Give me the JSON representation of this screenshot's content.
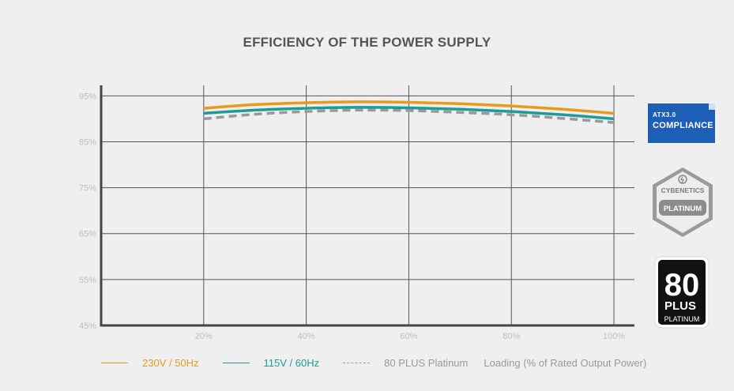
{
  "chart_data": {
    "type": "line",
    "title": "EFFICIENCY OF THE POWER SUPPLY",
    "xlabel": "Loading (% of Rated Output Power)",
    "ylabel": "",
    "x": [
      20,
      30,
      40,
      50,
      60,
      70,
      80,
      90,
      100
    ],
    "x_tick_labels": [
      "20%",
      "40%",
      "60%",
      "80%",
      "100%"
    ],
    "x_ticks": [
      20,
      40,
      60,
      80,
      100
    ],
    "xlim": [
      0,
      104
    ],
    "y_tick_labels": [
      "95%",
      "85%",
      "75%",
      "65%",
      "55%",
      "45%"
    ],
    "y_ticks": [
      95,
      85,
      75,
      65,
      55,
      45
    ],
    "ylim": [
      45,
      97.3
    ],
    "grid": true,
    "legend_position": "bottom",
    "series": [
      {
        "name": "230V / 50Hz",
        "color": "#e89a1e",
        "style": "solid",
        "values": [
          92.3,
          93.1,
          93.5,
          93.7,
          93.6,
          93.3,
          92.8,
          92.1,
          91.2
        ]
      },
      {
        "name": "115V / 60Hz",
        "color": "#1f9a9a",
        "style": "solid",
        "values": [
          91.2,
          91.9,
          92.3,
          92.5,
          92.4,
          92.1,
          91.6,
          90.9,
          90.0
        ]
      },
      {
        "name": "80 PLUS Platinum",
        "color": "#999999",
        "style": "dashed",
        "values": [
          90.0,
          91.0,
          91.6,
          91.9,
          91.8,
          91.4,
          90.9,
          90.1,
          89.2
        ]
      }
    ]
  },
  "badges": {
    "atx": {
      "line1": "ATX3.0",
      "line2": "COMPLIANCE"
    },
    "cybenetics": {
      "line1": "CYBENETICS",
      "line2": "PLATINUM"
    },
    "plus80": {
      "number": "80",
      "plus": "PLUS",
      "tier": "PLATINUM"
    }
  }
}
